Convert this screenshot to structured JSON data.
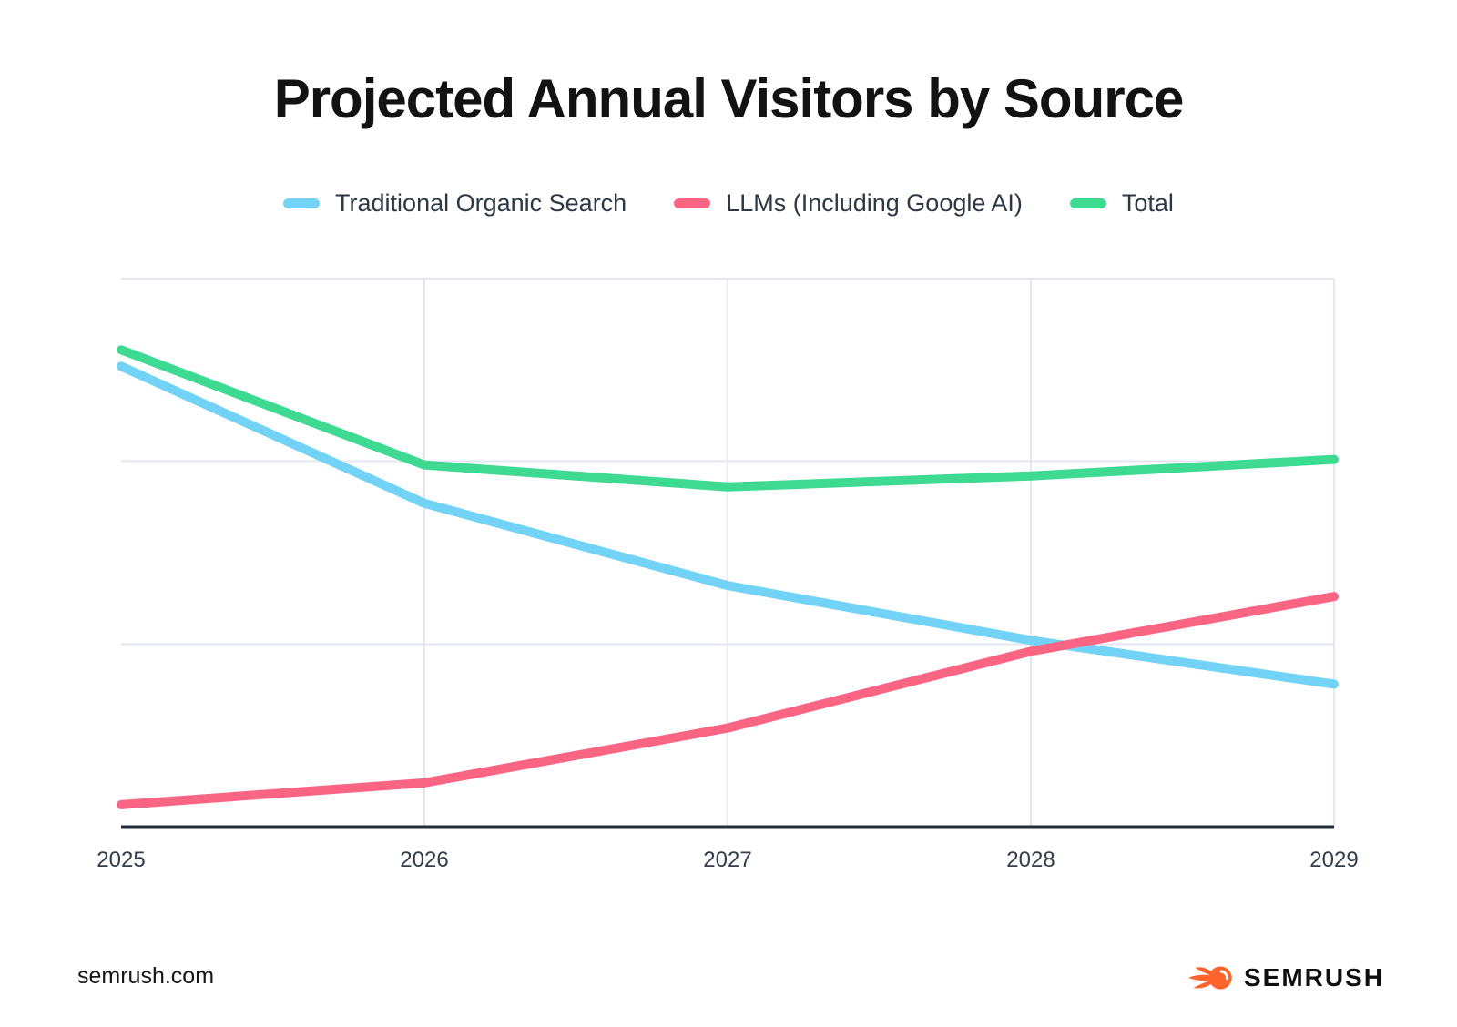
{
  "title": "Projected Annual Visitors by Source",
  "footer": {
    "site": "semrush.com",
    "logo_text": "SEMRUSH",
    "logo_color": "#ff642d"
  },
  "chart_data": {
    "type": "line",
    "title": "Projected Annual Visitors by Source",
    "x": [
      "2025",
      "2026",
      "2027",
      "2028",
      "2029"
    ],
    "series": [
      {
        "name": "Traditional Organic Search",
        "color": "#72d3f7",
        "values": [
          84,
          59,
          44,
          34,
          26
        ]
      },
      {
        "name": "LLMs (Including Google AI)",
        "color": "#fa6584",
        "values": [
          4,
          8,
          18,
          32,
          42
        ]
      },
      {
        "name": "Total",
        "color": "#3eda92",
        "values": [
          87,
          66,
          62,
          64,
          67
        ]
      }
    ],
    "xlabel": "",
    "ylabel": "",
    "ylim": [
      0,
      100
    ],
    "y_units": "relative units (chart shows no y-axis tick labels)",
    "gridlines_y": [
      33.3,
      66.7,
      100
    ],
    "grid": true,
    "legend_position": "top",
    "grid_color": "#e4e7f1",
    "axis_color": "#232c3a",
    "tick_label_color": "#343d4a",
    "line_width": 10
  }
}
